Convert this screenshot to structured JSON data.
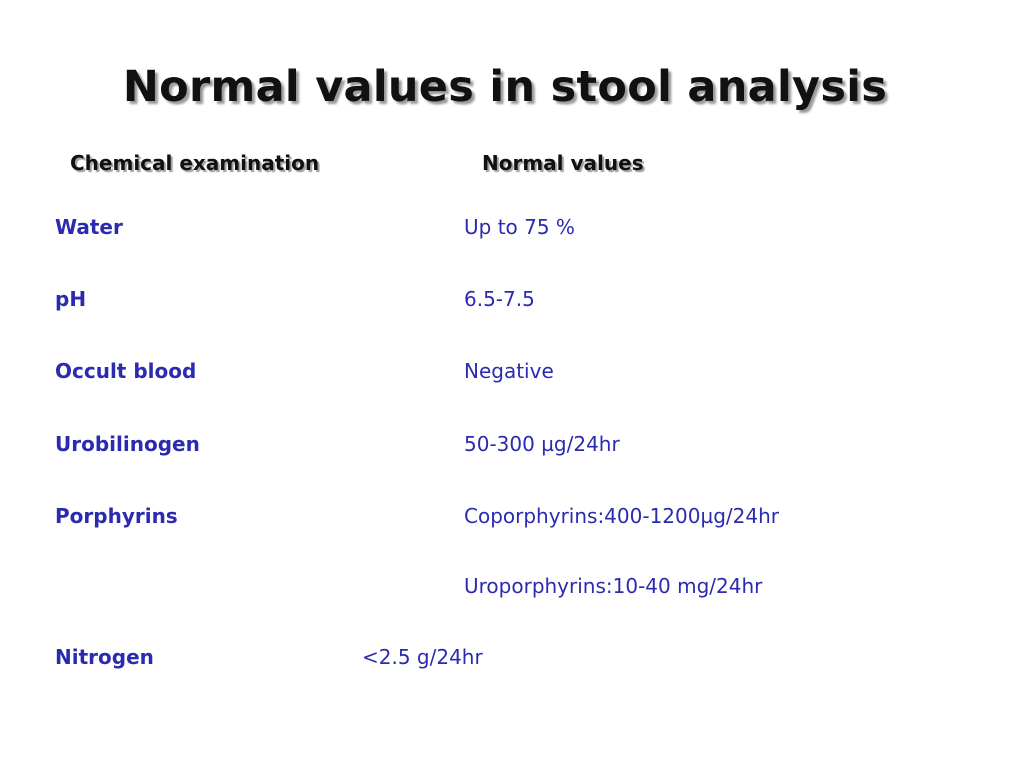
{
  "title": "Normal values in stool analysis",
  "headers": {
    "left": "Chemical examination",
    "right": "Normal values"
  },
  "rows": [
    {
      "label": "Water",
      "value": "Up to 75 %"
    },
    {
      "label": "pH",
      "value": "6.5-7.5"
    },
    {
      "label": "Occult blood",
      "value": "Negative"
    },
    {
      "label": "Urobilinogen",
      "value": "50-300 µg/24hr"
    },
    {
      "label": "Porphyrins",
      "value": "Coporphyrins:400-1200µg/24hr"
    },
    {
      "label": "",
      "value": "Uroporphyrins:10-40 mg/24hr"
    },
    {
      "label": "Nitrogen",
      "value": "<2.5 g/24hr"
    }
  ]
}
